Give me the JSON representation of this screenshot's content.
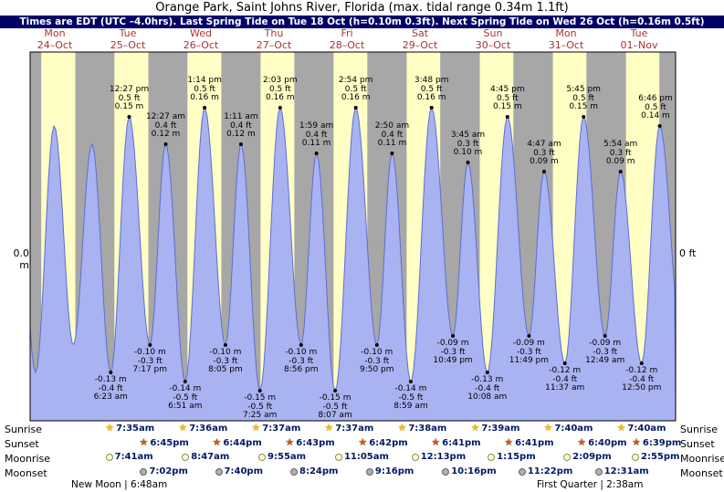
{
  "header": {
    "title": "Orange Park, Saint Johns River, Florida (max. tidal range 0.34m 1.1ft)",
    "subtitle": "Times are EDT (UTC –4.0hrs). Last Spring Tide on Tue 18 Oct (h=0.10m 0.3ft). Next Spring Tide on Wed 26 Oct (h=0.16m 0.5ft)"
  },
  "axis": {
    "left_label": "0.0 m",
    "right_label": "0 ft"
  },
  "chart_data": {
    "type": "area",
    "title": "Orange Park, Saint Johns River, Florida (max. tidal range 0.34m 1.1ft)",
    "num_days": 9,
    "ylim_m": [
      -0.183,
      0.221
    ],
    "colors": {
      "night_band": "#a7a7a7",
      "day_band": "#ffffc5",
      "tide_fill": "#a9b3f2",
      "tide_stroke": "#5c6ed2",
      "subtitle_bar": "#000066",
      "day_label_text": "#b03030",
      "astro_time_text": "#001a66"
    },
    "days": [
      {
        "dow": "Mon",
        "date": "24–Oct",
        "daylight": [
          7.57,
          18.77
        ]
      },
      {
        "dow": "Tue",
        "date": "25–Oct",
        "daylight": [
          7.583,
          18.75
        ]
      },
      {
        "dow": "Wed",
        "date": "26–Oct",
        "daylight": [
          7.6,
          18.733
        ]
      },
      {
        "dow": "Thu",
        "date": "27–Oct",
        "daylight": [
          7.617,
          18.717
        ]
      },
      {
        "dow": "Fri",
        "date": "28–Oct",
        "daylight": [
          7.617,
          18.7
        ]
      },
      {
        "dow": "Sat",
        "date": "29–Oct",
        "daylight": [
          7.633,
          18.683
        ]
      },
      {
        "dow": "Sun",
        "date": "30–Oct",
        "daylight": [
          7.65,
          18.683
        ]
      },
      {
        "dow": "Mon",
        "date": "31–Oct",
        "daylight": [
          7.667,
          18.667
        ]
      },
      {
        "dow": "Tue",
        "date": "01–Nov",
        "daylight": [
          7.667,
          18.65
        ]
      }
    ],
    "tide_events": [
      {
        "day": 1,
        "type": "low",
        "time": "6:23 am",
        "hour": 6.383,
        "height_m": -0.13,
        "height_ft": -0.4,
        "label_lines": [
          "-0.13 m",
          "-0.4 ft",
          "6:23 am"
        ]
      },
      {
        "day": 1,
        "type": "high",
        "time": "12:27 pm",
        "hour": 12.45,
        "height_m": 0.15,
        "height_ft": 0.5,
        "label_lines": [
          "12:27 pm",
          "0.5 ft",
          "0.15 m"
        ]
      },
      {
        "day": 1,
        "type": "low",
        "time": "7:17 pm",
        "hour": 19.283,
        "height_m": -0.1,
        "height_ft": -0.3,
        "label_lines": [
          "-0.10 m",
          "-0.3 ft",
          "7:17 pm"
        ]
      },
      {
        "day": 2,
        "type": "high",
        "time": "12:27 am",
        "hour": 0.45,
        "height_m": 0.12,
        "height_ft": 0.4,
        "label_lines": [
          "12:27 am",
          "0.4 ft",
          "0.12 m"
        ]
      },
      {
        "day": 2,
        "type": "low",
        "time": "6:51 am",
        "hour": 6.85,
        "height_m": -0.14,
        "height_ft": -0.5,
        "label_lines": [
          "-0.14 m",
          "-0.5 ft",
          "6:51 am"
        ]
      },
      {
        "day": 2,
        "type": "high",
        "time": "1:14 pm",
        "hour": 13.233,
        "height_m": 0.16,
        "height_ft": 0.5,
        "label_lines": [
          "1:14 pm",
          "0.5 ft",
          "0.16 m"
        ]
      },
      {
        "day": 2,
        "type": "low",
        "time": "8:05 pm",
        "hour": 20.083,
        "height_m": -0.1,
        "height_ft": -0.3,
        "label_lines": [
          "-0.10 m",
          "-0.3 ft",
          "8:05 pm"
        ]
      },
      {
        "day": 3,
        "type": "high",
        "time": "1:11 am",
        "hour": 1.183,
        "height_m": 0.12,
        "height_ft": 0.4,
        "label_lines": [
          "1:11 am",
          "0.4 ft",
          "0.12 m"
        ]
      },
      {
        "day": 3,
        "type": "low",
        "time": "7:25 am",
        "hour": 7.417,
        "height_m": -0.15,
        "height_ft": -0.5,
        "label_lines": [
          "-0.15 m",
          "-0.5 ft",
          "7:25 am"
        ]
      },
      {
        "day": 3,
        "type": "high",
        "time": "2:03 pm",
        "hour": 14.05,
        "height_m": 0.16,
        "height_ft": 0.5,
        "label_lines": [
          "2:03 pm",
          "0.5 ft",
          "0.16 m"
        ]
      },
      {
        "day": 3,
        "type": "low",
        "time": "8:56 pm",
        "hour": 20.933,
        "height_m": -0.1,
        "height_ft": -0.3,
        "label_lines": [
          "-0.10 m",
          "-0.3 ft",
          "8:56 pm"
        ]
      },
      {
        "day": 4,
        "type": "high",
        "time": "1:59 am",
        "hour": 1.983,
        "height_m": 0.11,
        "height_ft": 0.4,
        "label_lines": [
          "1:59 am",
          "0.4 ft",
          "0.11 m"
        ]
      },
      {
        "day": 4,
        "type": "low",
        "time": "8:07 am",
        "hour": 8.117,
        "height_m": -0.15,
        "height_ft": -0.5,
        "label_lines": [
          "-0.15 m",
          "-0.5 ft",
          "8:07 am"
        ]
      },
      {
        "day": 4,
        "type": "high",
        "time": "2:54 pm",
        "hour": 14.9,
        "height_m": 0.16,
        "height_ft": 0.5,
        "label_lines": [
          "2:54 pm",
          "0.5 ft",
          "0.16 m"
        ]
      },
      {
        "day": 4,
        "type": "low",
        "time": "9:50 pm",
        "hour": 21.833,
        "height_m": -0.1,
        "height_ft": -0.3,
        "label_lines": [
          "-0.10 m",
          "-0.3 ft",
          "9:50 pm"
        ]
      },
      {
        "day": 5,
        "type": "high",
        "time": "2:50 am",
        "hour": 2.833,
        "height_m": 0.11,
        "height_ft": 0.4,
        "label_lines": [
          "2:50 am",
          "0.4 ft",
          "0.11 m"
        ]
      },
      {
        "day": 5,
        "type": "low",
        "time": "8:59 am",
        "hour": 8.983,
        "height_m": -0.14,
        "height_ft": -0.5,
        "label_lines": [
          "-0.14 m",
          "-0.5 ft",
          "8:59 am"
        ]
      },
      {
        "day": 5,
        "type": "high",
        "time": "3:48 pm",
        "hour": 15.8,
        "height_m": 0.16,
        "height_ft": 0.5,
        "label_lines": [
          "3:48 pm",
          "0.5 ft",
          "0.16 m"
        ]
      },
      {
        "day": 5,
        "type": "low",
        "time": "10:49 pm",
        "hour": 22.817,
        "height_m": -0.09,
        "height_ft": -0.3,
        "label_lines": [
          "-0.09 m",
          "-0.3 ft",
          "10:49 pm"
        ]
      },
      {
        "day": 6,
        "type": "high",
        "time": "3:45 am",
        "hour": 3.75,
        "height_m": 0.1,
        "height_ft": 0.3,
        "label_lines": [
          "3:45 am",
          "0.3 ft",
          "0.10 m"
        ]
      },
      {
        "day": 6,
        "type": "low",
        "time": "10:08 am",
        "hour": 10.133,
        "height_m": -0.13,
        "height_ft": -0.4,
        "label_lines": [
          "-0.13 m",
          "-0.4 ft",
          "10:08 am"
        ]
      },
      {
        "day": 6,
        "type": "high",
        "time": "4:45 pm",
        "hour": 16.75,
        "height_m": 0.15,
        "height_ft": 0.5,
        "label_lines": [
          "4:45 pm",
          "0.5 ft",
          "0.15 m"
        ]
      },
      {
        "day": 6,
        "type": "low",
        "time": "11:49 pm",
        "hour": 23.817,
        "height_m": -0.09,
        "height_ft": -0.3,
        "label_lines": [
          "-0.09 m",
          "-0.3 ft",
          "11:49 pm"
        ]
      },
      {
        "day": 7,
        "type": "high",
        "time": "4:47 am",
        "hour": 4.783,
        "height_m": 0.09,
        "height_ft": 0.3,
        "label_lines": [
          "4:47 am",
          "0.3 ft",
          "0.09 m"
        ]
      },
      {
        "day": 7,
        "type": "low",
        "time": "11:37 am",
        "hour": 11.617,
        "height_m": -0.12,
        "height_ft": -0.4,
        "label_lines": [
          "-0.12 m",
          "-0.4 ft",
          "11:37 am"
        ]
      },
      {
        "day": 7,
        "type": "high",
        "time": "5:45 pm",
        "hour": 17.75,
        "height_m": 0.15,
        "height_ft": 0.5,
        "label_lines": [
          "5:45 pm",
          "0.5 ft",
          "0.15 m"
        ]
      },
      {
        "day": 8,
        "type": "low",
        "time": "12:49 am",
        "hour": 0.817,
        "height_m": -0.09,
        "height_ft": -0.3,
        "label_lines": [
          "-0.09 m",
          "-0.3 ft",
          "12:49 am"
        ]
      },
      {
        "day": 8,
        "type": "high",
        "time": "5:54 am",
        "hour": 5.9,
        "height_m": 0.09,
        "height_ft": 0.3,
        "label_lines": [
          "5:54 am",
          "0.3 ft",
          "0.09 m"
        ]
      },
      {
        "day": 8,
        "type": "low",
        "time": "12:50 pm",
        "hour": 12.833,
        "height_m": -0.12,
        "height_ft": -0.4,
        "label_lines": [
          "-0.12 m",
          "-0.4 ft",
          "12:50 pm"
        ]
      },
      {
        "day": 8,
        "type": "high",
        "time": "6:46 pm",
        "hour": 18.767,
        "height_m": 0.14,
        "height_ft": 0.5,
        "label_lines": [
          "6:46 pm",
          "0.5 ft",
          "0.14 m"
        ]
      }
    ],
    "unlabeled_extremes": [
      {
        "t": -0.5,
        "m": 0.12
      },
      {
        "t": 5.7,
        "m": -0.13
      },
      {
        "t": 11.8,
        "m": 0.14
      },
      {
        "t": 18.1,
        "m": -0.1
      },
      {
        "t": 24.2,
        "m": 0.12
      },
      {
        "t": 217.9,
        "m": -0.09
      }
    ]
  },
  "astro": {
    "rows": [
      {
        "id": "sunrise",
        "label": "Sunrise",
        "icon": "sunrise-star-icon",
        "entries": [
          {
            "day": 1,
            "time": "7:35am",
            "hour": 7.583
          },
          {
            "day": 2,
            "time": "7:36am",
            "hour": 7.6
          },
          {
            "day": 3,
            "time": "7:37am",
            "hour": 7.617
          },
          {
            "day": 4,
            "time": "7:37am",
            "hour": 7.617
          },
          {
            "day": 5,
            "time": "7:38am",
            "hour": 7.633
          },
          {
            "day": 6,
            "time": "7:39am",
            "hour": 7.65
          },
          {
            "day": 7,
            "time": "7:40am",
            "hour": 7.667
          },
          {
            "day": 8,
            "time": "7:40am",
            "hour": 7.667
          }
        ]
      },
      {
        "id": "sunset",
        "label": "Sunset",
        "icon": "sunset-star-icon",
        "entries": [
          {
            "day": 1,
            "time": "6:45pm",
            "hour": 18.75
          },
          {
            "day": 2,
            "time": "6:44pm",
            "hour": 18.733
          },
          {
            "day": 3,
            "time": "6:43pm",
            "hour": 18.717
          },
          {
            "day": 4,
            "time": "6:42pm",
            "hour": 18.7
          },
          {
            "day": 5,
            "time": "6:41pm",
            "hour": 18.683
          },
          {
            "day": 6,
            "time": "6:41pm",
            "hour": 18.683
          },
          {
            "day": 7,
            "time": "6:40pm",
            "hour": 18.667
          },
          {
            "day": 8,
            "time": "6:39pm",
            "hour": 18.65
          }
        ]
      },
      {
        "id": "moonrise",
        "label": "Moonrise",
        "icon": "moonrise-circle-icon",
        "entries": [
          {
            "day": 1,
            "time": "7:41am",
            "hour": 7.683
          },
          {
            "day": 2,
            "time": "8:47am",
            "hour": 8.783
          },
          {
            "day": 3,
            "time": "9:55am",
            "hour": 9.917
          },
          {
            "day": 4,
            "time": "11:05am",
            "hour": 11.083
          },
          {
            "day": 5,
            "time": "12:13pm",
            "hour": 12.217
          },
          {
            "day": 6,
            "time": "1:15pm",
            "hour": 13.25
          },
          {
            "day": 7,
            "time": "2:09pm",
            "hour": 14.15
          },
          {
            "day": 8,
            "time": "2:55pm",
            "hour": 14.917
          }
        ]
      },
      {
        "id": "moonset",
        "label": "Moonset",
        "icon": "moonset-circle-icon",
        "entries": [
          {
            "day": 1,
            "time": "7:02pm",
            "hour": 19.033
          },
          {
            "day": 2,
            "time": "7:40pm",
            "hour": 19.667
          },
          {
            "day": 3,
            "time": "8:24pm",
            "hour": 20.4
          },
          {
            "day": 4,
            "time": "9:16pm",
            "hour": 21.267
          },
          {
            "day": 5,
            "time": "10:16pm",
            "hour": 22.267
          },
          {
            "day": 6,
            "time": "11:22pm",
            "hour": 23.367
          },
          {
            "day": 8,
            "time": "12:31am",
            "hour": 0.517
          }
        ]
      }
    ],
    "footer_left": "New Moon | 6:48am",
    "footer_right": "First Quarter | 2:38am"
  }
}
